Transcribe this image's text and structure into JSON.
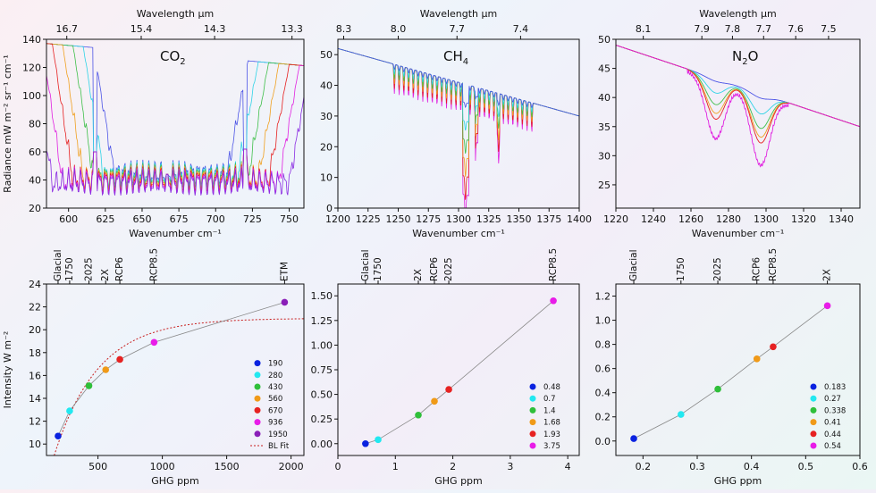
{
  "chart_data": [
    {
      "type": "line",
      "panel": "top-left",
      "title": "CO2",
      "xlabel": "Wavenumber cm⁻¹",
      "ylabel": "Radiance mW m⁻² sr⁻¹ cm⁻¹",
      "top_label": "Wavelength μm",
      "xlim": [
        585,
        760
      ],
      "ylim": [
        20,
        140
      ],
      "xticks": [
        600,
        625,
        650,
        675,
        700,
        725,
        750
      ],
      "yticks": [
        20,
        40,
        60,
        80,
        100,
        120,
        140
      ],
      "top_ticks": [
        {
          "label": "16.7",
          "wn": 598.8
        },
        {
          "label": "15.4",
          "wn": 649.4
        },
        {
          "label": "14.3",
          "wn": 699.3
        },
        {
          "label": "13.3",
          "wn": 751.9
        }
      ],
      "series_colors": [
        "#4d55e6",
        "#2fd3e6",
        "#3fbf4a",
        "#f0a020",
        "#e62020",
        "#e020e0",
        "#8a2be2"
      ],
      "band": {
        "center": 667,
        "half_width_low": 50,
        "half_width_high": 55,
        "floor": 44
      }
    },
    {
      "type": "line",
      "panel": "top-middle",
      "title": "CH4",
      "xlabel": "Wavenumber cm⁻¹",
      "top_label": "Wavelength μm",
      "xlim": [
        1200,
        1400
      ],
      "ylim": [
        0,
        55
      ],
      "xticks": [
        1200,
        1225,
        1250,
        1275,
        1300,
        1325,
        1350,
        1375,
        1400
      ],
      "yticks": [
        0,
        10,
        20,
        30,
        40,
        50
      ],
      "top_ticks": [
        {
          "label": "8.3",
          "wn": 1204.8
        },
        {
          "label": "8.0",
          "wn": 1250
        },
        {
          "label": "7.7",
          "wn": 1298.7
        },
        {
          "label": "7.4",
          "wn": 1351.4
        }
      ],
      "baseline": [
        [
          1200,
          52
        ],
        [
          1400,
          30
        ]
      ],
      "series_colors": [
        "#4d55e6",
        "#2fd3e6",
        "#3fbf4a",
        "#f0a020",
        "#e62020",
        "#e020e0"
      ]
    },
    {
      "type": "line",
      "panel": "top-right",
      "title": "N2O",
      "xlabel": "Wavenumber cm⁻¹",
      "top_label": "Wavelength μm",
      "xlim": [
        1220,
        1350
      ],
      "ylim": [
        21,
        50
      ],
      "xticks": [
        1220,
        1240,
        1260,
        1280,
        1300,
        1320,
        1340
      ],
      "yticks": [
        25,
        30,
        35,
        40,
        45,
        50
      ],
      "top_ticks": [
        {
          "label": "8.1",
          "wn": 1234.6
        },
        {
          "label": "7.9",
          "wn": 1265.8
        },
        {
          "label": "7.8",
          "wn": 1282.1
        },
        {
          "label": "7.7",
          "wn": 1298.7
        },
        {
          "label": "7.6",
          "wn": 1315.8
        },
        {
          "label": "7.5",
          "wn": 1333.3
        }
      ],
      "baseline": [
        [
          1220,
          49
        ],
        [
          1350,
          35
        ]
      ],
      "dips": [
        {
          "center": 1273,
          "width": 7,
          "depths": [
            0.5,
            2.5,
            4.5,
            6.0,
            7.0,
            10.0
          ]
        },
        {
          "center": 1297,
          "width": 7,
          "depths": [
            0.8,
            3.5,
            6.0,
            7.5,
            8.5,
            12.0
          ]
        }
      ],
      "series_colors": [
        "#4d55e6",
        "#2fd3e6",
        "#3fbf4a",
        "#f0a020",
        "#e62020",
        "#e020e0"
      ]
    },
    {
      "type": "scatter",
      "panel": "bottom-left",
      "xlabel": "GHG ppm",
      "ylabel": "Intensity W m⁻²",
      "xlim": [
        100,
        2100
      ],
      "ylim": [
        9,
        24
      ],
      "xticks": [
        500,
        1000,
        1500,
        2000
      ],
      "yticks": [
        10,
        12,
        14,
        16,
        18,
        20,
        22,
        24
      ],
      "top_labels": [
        {
          "label": "Glacial",
          "x": 190
        },
        {
          "label": "1750",
          "x": 280
        },
        {
          "label": "2025",
          "x": 430
        },
        {
          "label": "2X",
          "x": 560
        },
        {
          "label": "RCP6",
          "x": 670
        },
        {
          "label": "RCP8.5",
          "x": 936
        },
        {
          "label": "ETM",
          "x": 1950
        }
      ],
      "x": [
        190,
        280,
        430,
        560,
        670,
        936,
        1950
      ],
      "y": [
        10.7,
        12.9,
        15.1,
        16.5,
        17.4,
        18.9,
        22.4
      ],
      "colors": [
        "#0a22e0",
        "#22e8f0",
        "#2fbf3a",
        "#f09a18",
        "#e62222",
        "#e81ce8",
        "#8a1fb8"
      ],
      "legend": [
        "190",
        "280",
        "430",
        "560",
        "670",
        "936",
        "1950"
      ],
      "fit": {
        "label": "BL Fit",
        "color": "#c81e1e",
        "asymptote": 21,
        "x0": 160,
        "scale": 340,
        "start": 9.0
      }
    },
    {
      "type": "scatter",
      "panel": "bottom-middle",
      "xlabel": "GHG ppm",
      "xlim": [
        0,
        4.2
      ],
      "ylim": [
        -0.12,
        1.62
      ],
      "xticks": [
        0,
        1,
        2,
        3,
        4
      ],
      "yticks": [
        0.0,
        0.25,
        0.5,
        0.75,
        1.0,
        1.25,
        1.5
      ],
      "top_labels": [
        {
          "label": "Glacial",
          "x": 0.48
        },
        {
          "label": "1750",
          "x": 0.7
        },
        {
          "label": "2X",
          "x": 1.4
        },
        {
          "label": "RCP6",
          "x": 1.68
        },
        {
          "label": "2025",
          "x": 1.93
        },
        {
          "label": "RCP8.5",
          "x": 3.75
        }
      ],
      "x": [
        0.48,
        0.7,
        1.4,
        1.68,
        1.93,
        3.75
      ],
      "y": [
        0.0,
        0.04,
        0.29,
        0.43,
        0.55,
        1.45
      ],
      "colors": [
        "#0a22e0",
        "#22e8f0",
        "#2fbf3a",
        "#f09a18",
        "#e62222",
        "#e81ce8"
      ],
      "legend": [
        "0.48",
        "0.7",
        "1.4",
        "1.68",
        "1.93",
        "3.75"
      ]
    },
    {
      "type": "scatter",
      "panel": "bottom-right",
      "xlabel": "GHG ppm",
      "xlim": [
        0.15,
        0.6
      ],
      "ylim": [
        -0.12,
        1.3
      ],
      "xticks": [
        0.2,
        0.3,
        0.4,
        0.5,
        0.6
      ],
      "yticks": [
        0.0,
        0.2,
        0.4,
        0.6,
        0.8,
        1.0,
        1.2
      ],
      "top_labels": [
        {
          "label": "Glacial",
          "x": 0.183
        },
        {
          "label": "1750",
          "x": 0.27
        },
        {
          "label": "2025",
          "x": 0.338
        },
        {
          "label": "RCP6",
          "x": 0.41
        },
        {
          "label": "RCP8.5",
          "x": 0.44
        },
        {
          "label": "2X",
          "x": 0.54
        }
      ],
      "x": [
        0.183,
        0.27,
        0.338,
        0.41,
        0.44,
        0.54
      ],
      "y": [
        0.02,
        0.22,
        0.43,
        0.68,
        0.78,
        1.12
      ],
      "colors": [
        "#0a22e0",
        "#22e8f0",
        "#2fbf3a",
        "#f09a18",
        "#e62222",
        "#e81ce8"
      ],
      "legend": [
        "0.183",
        "0.27",
        "0.338",
        "0.41",
        "0.44",
        "0.54"
      ]
    }
  ]
}
